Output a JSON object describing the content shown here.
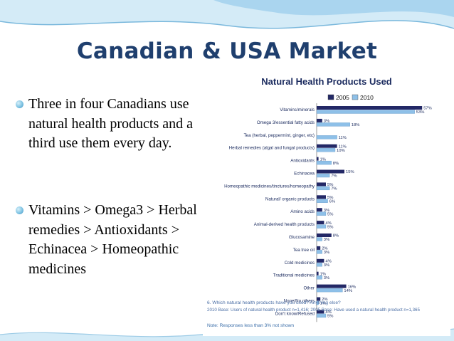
{
  "slide": {
    "title": "Canadian & USA Market",
    "bullets": [
      "Three in four Canadians use natural health products and a third use them every day.",
      "Vitamins > Omega3 > Herbal remedies > Antioxidants > Echinacea > Homeopathic medicines"
    ],
    "colors": {
      "title": "#1f3f6e",
      "wave_light": "#d4ebf7",
      "wave_dark": "#8ac6e6"
    }
  },
  "chart_data": {
    "type": "bar",
    "orientation": "horizontal",
    "title": "Natural Health Products Used",
    "categories": [
      "Vitamins/minerals",
      "Omega 3/essential fatty acids",
      "Tea (herbal, peppermint, ginger, etc)",
      "Herbal remedies (algal and fungal products)",
      "Antioxidants",
      "Echinacea",
      "Homeopathic medicines/tinctures/homeopathy",
      "Natural/ organic products",
      "Amino acids",
      "Animal-derived health products",
      "Glucosamine",
      "Tea tree oil",
      "Cold medicines",
      "Traditional medicines",
      "Other",
      "None/No others",
      "Don't know/Refused"
    ],
    "series": [
      {
        "name": "2005",
        "color": "#232866",
        "values": [
          57,
          3,
          0,
          11,
          1,
          15,
          5,
          5,
          3,
          4,
          8,
          2,
          4,
          1,
          16,
          2,
          4
        ],
        "labels": [
          "57%",
          "3%",
          "",
          "11%",
          "1%",
          "15%",
          "5%",
          "5%",
          "3%",
          "4%",
          "8%",
          "2%",
          "4%",
          "1%",
          "16%",
          "2%",
          "4%"
        ]
      },
      {
        "name": "2010",
        "color": "#8ec0e8",
        "values": [
          53,
          18,
          11,
          10,
          8,
          7,
          7,
          6,
          5,
          5,
          3,
          3,
          3,
          3,
          14,
          1,
          5
        ],
        "labels": [
          "53%",
          "18%",
          "11%",
          "10%",
          "8%",
          "7%",
          "7%",
          "6%",
          "5%",
          "5%",
          "3%",
          "3%",
          "3%",
          "3%",
          "14%",
          "1%",
          "5%"
        ]
      }
    ],
    "xlim": [
      0,
      60
    ],
    "grid": false,
    "legend_position": "top",
    "footnotes": [
      "6. Which natural health products have you used? Anything else?",
      "2010 Base: Users of natural health product n=1,416; 2005 Base: Have used a natural health product n=1,365",
      "Note: Responses less than 3% not shown"
    ]
  }
}
